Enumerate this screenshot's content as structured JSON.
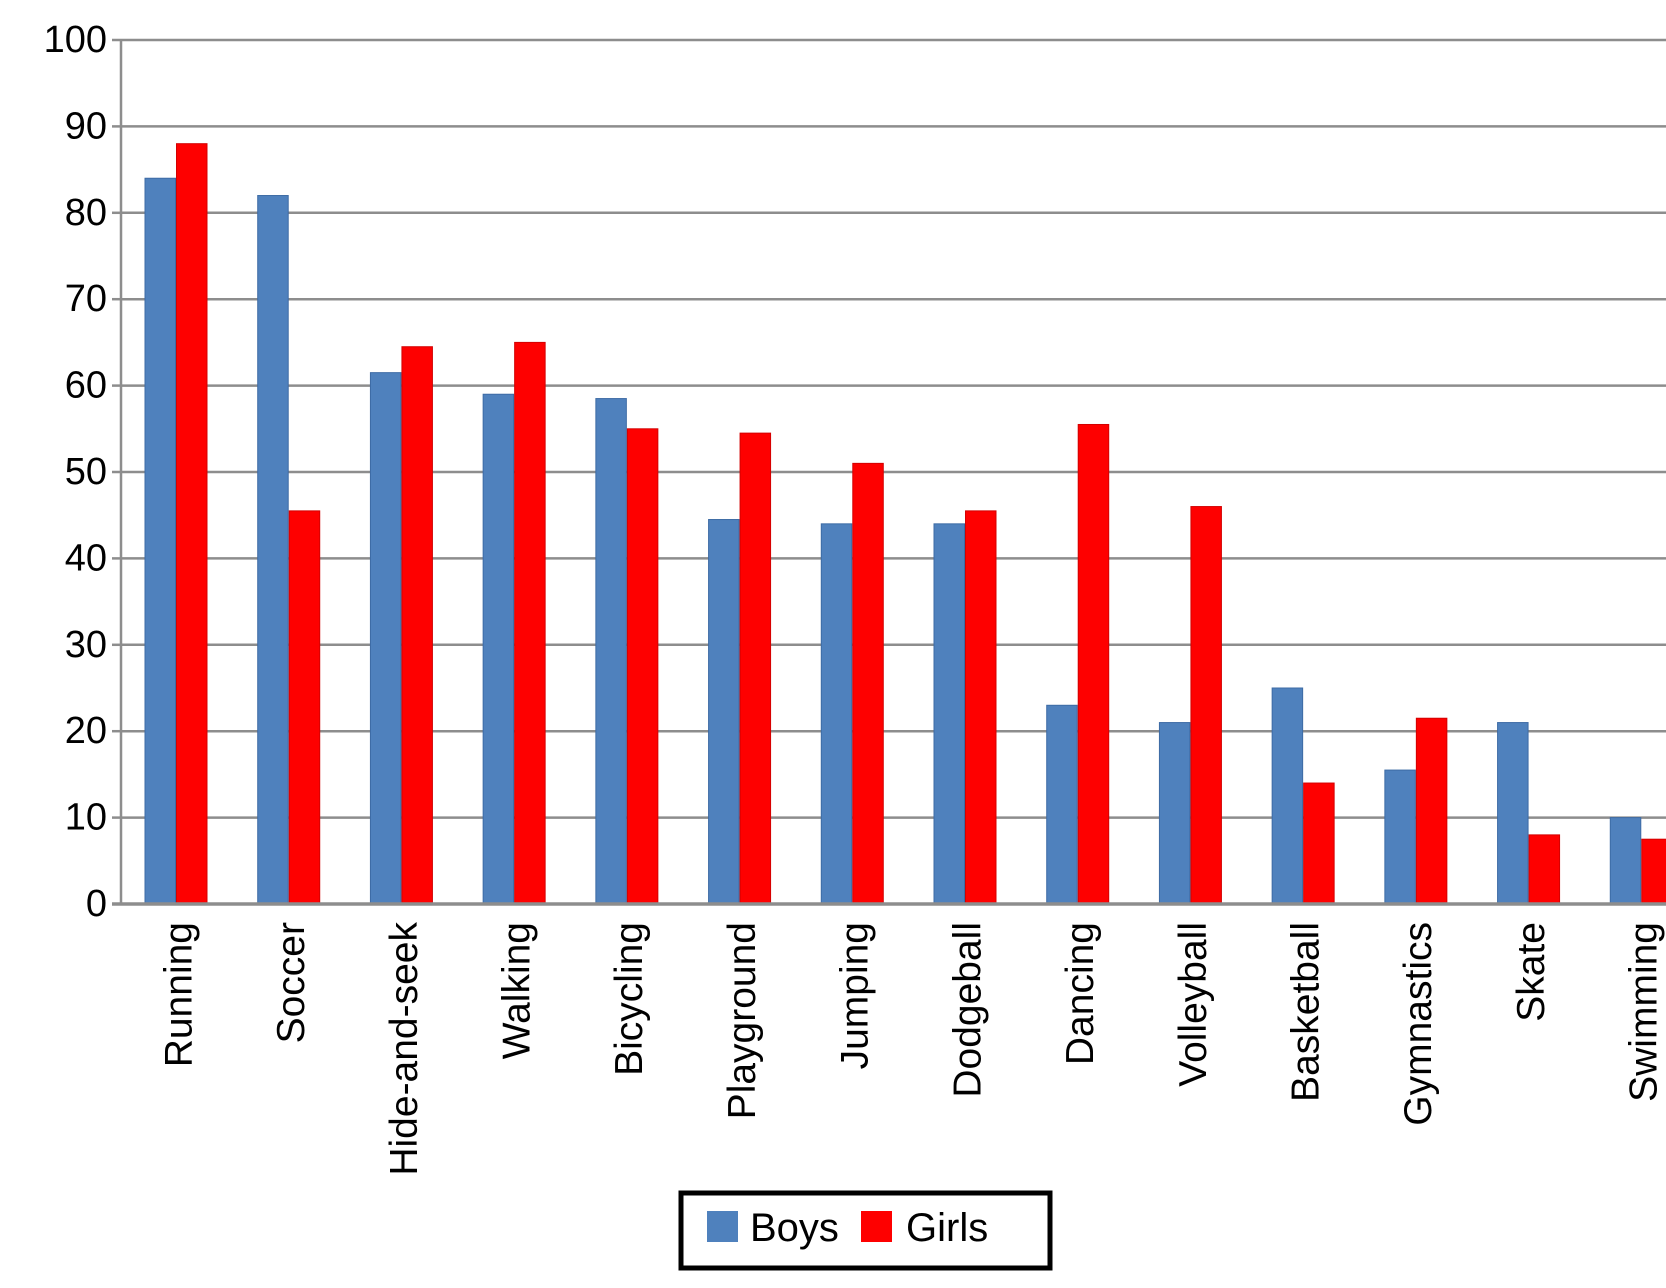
{
  "chart_data": {
    "type": "bar",
    "title": "",
    "xlabel": "",
    "ylabel": "",
    "categories": [
      "Running",
      "Soccer",
      "Hide-and-seek",
      "Walking",
      "Bicycling",
      "Playground",
      "Jumping",
      "Dodgeball",
      "Dancing",
      "Volleyball",
      "Basketball",
      "Gymnastics",
      "Skate",
      "Swimming"
    ],
    "series": [
      {
        "name": "Boys",
        "color": "#4f81bd",
        "edge_color": "#3d6ba5",
        "values": [
          84,
          82,
          61.5,
          59,
          58.5,
          44.5,
          44,
          44,
          23,
          21,
          25,
          15.5,
          21,
          10
        ]
      },
      {
        "name": "Girls",
        "color": "#fe0000",
        "edge_color": "#d40000",
        "values": [
          88,
          45.5,
          64.5,
          65,
          55,
          54.5,
          51,
          45.5,
          55.5,
          46,
          14,
          21.5,
          8,
          7.5
        ]
      }
    ],
    "ylim": [
      0,
      100
    ],
    "ytick_step": 10,
    "ytick_labels": [
      "0",
      "10",
      "20",
      "30",
      "40",
      "50",
      "60",
      "70",
      "80",
      "90",
      "100"
    ],
    "grid": "horizontal",
    "legend_position": "bottom-center",
    "legend_entries": [
      "Boys",
      "Girls"
    ]
  },
  "style_colors": {
    "grid": "#8d8d8d",
    "axis": "#8d8d8d",
    "text": "#000000",
    "background": "#ffffff",
    "legend_border": "#000000",
    "legend_fill": "#ffffff"
  }
}
